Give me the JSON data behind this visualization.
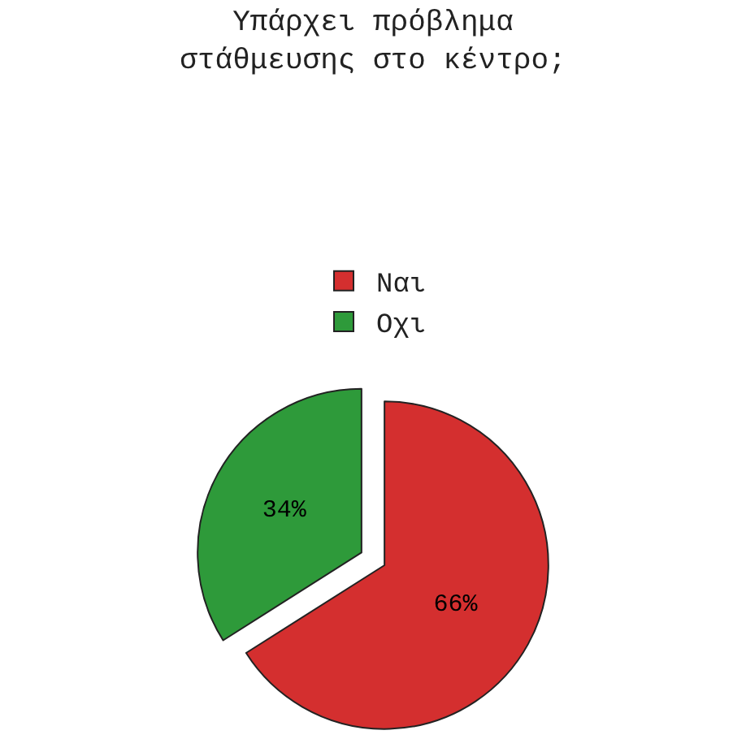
{
  "chart_data": {
    "type": "pie",
    "title": "Υπάρχει πρόβλημα\nστάθμευσης στο κέντρο;",
    "categories": [
      "Ναι",
      "Οχι"
    ],
    "values": [
      66,
      34
    ],
    "colors": [
      "#d42f2f",
      "#2e9a3a"
    ],
    "value_labels": [
      "66%",
      "34%"
    ],
    "legend": "top"
  }
}
